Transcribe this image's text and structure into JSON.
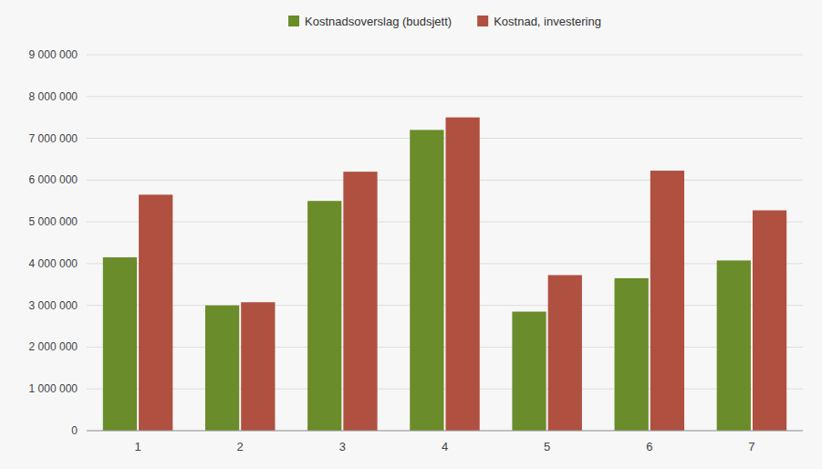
{
  "chart_data": {
    "type": "bar",
    "categories": [
      "1",
      "2",
      "3",
      "4",
      "5",
      "6",
      "7"
    ],
    "series": [
      {
        "name": "Kostnadsoverslag (budsjett)",
        "color": "#6a8c2a",
        "values": [
          4150000,
          3000000,
          5500000,
          7200000,
          2850000,
          3650000,
          4075000
        ]
      },
      {
        "name": "Kostnad, investering",
        "color": "#b05040",
        "values": [
          5650000,
          3075000,
          6200000,
          7500000,
          3725000,
          6225000,
          5275000
        ]
      }
    ],
    "ylim": [
      0,
      9000000
    ],
    "yticks": [
      0,
      {
        "value": 1000000,
        "label": "1 000 000"
      },
      {
        "value": 2000000,
        "label": "2 000 000"
      },
      {
        "value": 3000000,
        "label": "3 000 000"
      },
      {
        "value": 4000000,
        "label": "4 000 000"
      },
      {
        "value": 5000000,
        "label": "5 000 000"
      },
      {
        "value": 6000000,
        "label": "6 000 000"
      },
      {
        "value": 7000000,
        "label": "7 000 000"
      },
      {
        "value": 8000000,
        "label": "8 000 000"
      },
      {
        "value": 9000000,
        "label": "9 000 000"
      }
    ],
    "grid": true,
    "legend": "top"
  }
}
